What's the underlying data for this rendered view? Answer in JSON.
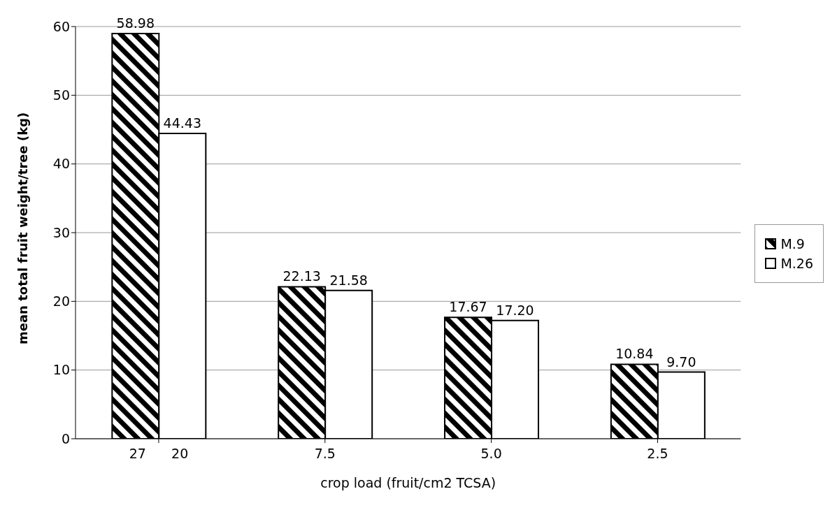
{
  "chart_data": {
    "type": "bar",
    "xlabel": "crop  load  (fruit/cm2  TCSA)",
    "ylabel": "mean total fruit weight/tree (kg)",
    "categories": [
      "27      20",
      "7.5",
      "5.0",
      "2.5"
    ],
    "series": [
      {
        "name": "M.9",
        "color": "#000000",
        "values": [
          58.98,
          22.13,
          17.67,
          10.84
        ],
        "value_labels": [
          "58.98",
          "22.13",
          "17.67",
          "10.84"
        ]
      },
      {
        "name": "M.26",
        "color": "#ffffff",
        "values": [
          44.43,
          21.58,
          17.2,
          9.7
        ],
        "value_labels": [
          "44.43",
          "21.58",
          "17.20",
          "9.70"
        ]
      }
    ],
    "ylim": [
      0,
      60
    ],
    "yticks": [
      0,
      10,
      20,
      30,
      40,
      50,
      60
    ],
    "grid": "y",
    "legend": "right"
  }
}
